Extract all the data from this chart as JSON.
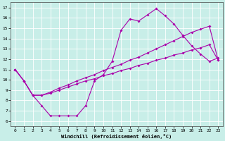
{
  "bg_color": "#c8eee8",
  "line_color": "#aa00aa",
  "grid_color": "#ffffff",
  "xlim": [
    -0.5,
    23.5
  ],
  "ylim": [
    5.5,
    17.5
  ],
  "xticks": [
    0,
    1,
    2,
    3,
    4,
    5,
    6,
    7,
    8,
    9,
    10,
    11,
    12,
    13,
    14,
    15,
    16,
    17,
    18,
    19,
    20,
    21,
    22,
    23
  ],
  "yticks": [
    6,
    7,
    8,
    9,
    10,
    11,
    12,
    13,
    14,
    15,
    16,
    17
  ],
  "xlabel": "Windchill (Refroidissement éolien,°C)",
  "curve1_x": [
    0,
    1,
    2,
    3,
    4,
    5,
    6,
    7,
    8,
    9,
    10,
    11,
    12,
    13,
    14,
    15,
    16,
    17,
    18,
    19,
    20,
    21,
    22,
    23
  ],
  "curve1_y": [
    11.0,
    9.9,
    8.5,
    7.5,
    6.5,
    6.5,
    6.5,
    6.5,
    7.5,
    9.9,
    10.5,
    11.8,
    14.8,
    15.9,
    15.7,
    16.3,
    16.9,
    16.2,
    15.4,
    14.3,
    13.3,
    12.5,
    11.8,
    12.1
  ],
  "curve2_x": [
    0,
    1,
    2,
    3,
    4,
    5,
    6,
    7,
    8,
    9,
    10,
    11,
    12,
    13,
    14,
    15,
    16,
    17,
    18,
    19,
    20,
    21,
    22,
    23
  ],
  "curve2_y": [
    11.0,
    9.9,
    8.5,
    8.5,
    8.8,
    9.2,
    9.5,
    9.9,
    10.2,
    10.5,
    10.9,
    11.2,
    11.5,
    11.9,
    12.2,
    12.6,
    13.0,
    13.4,
    13.8,
    14.2,
    14.6,
    14.9,
    15.2,
    11.9
  ],
  "curve3_x": [
    0,
    1,
    2,
    3,
    4,
    5,
    6,
    7,
    8,
    9,
    10,
    11,
    12,
    13,
    14,
    15,
    16,
    17,
    18,
    19,
    20,
    21,
    22,
    23
  ],
  "curve3_y": [
    11.0,
    9.9,
    8.5,
    8.5,
    8.7,
    9.0,
    9.3,
    9.6,
    9.9,
    10.1,
    10.4,
    10.6,
    10.9,
    11.1,
    11.4,
    11.6,
    11.9,
    12.1,
    12.4,
    12.6,
    12.9,
    13.1,
    13.4,
    11.9
  ],
  "tick_fontsize": 4.5,
  "xlabel_fontsize": 5.0,
  "marker_size": 2.0,
  "line_width": 0.8
}
